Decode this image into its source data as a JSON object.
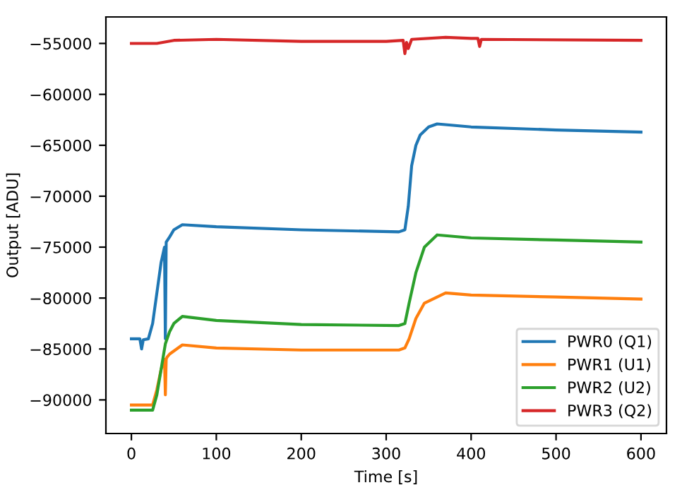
{
  "chart_data": {
    "type": "line",
    "xlabel": "Time [s]",
    "ylabel": "Output [ADU]",
    "xlim": [
      -30,
      630
    ],
    "ylim": [
      -93300,
      -52400
    ],
    "xticks": [
      0,
      100,
      200,
      300,
      400,
      500,
      600
    ],
    "yticks": [
      -90000,
      -85000,
      -80000,
      -75000,
      -70000,
      -65000,
      -60000,
      -55000
    ],
    "legend": "bottom right",
    "grid": false,
    "series": [
      {
        "name": "PWR0 (Q1)",
        "color": "#1f77b4",
        "x": [
          0,
          10,
          12,
          14,
          20,
          25,
          30,
          35,
          39,
          40,
          41,
          45,
          50,
          60,
          100,
          200,
          315,
          322,
          326,
          330,
          335,
          340,
          350,
          360,
          400,
          500,
          600
        ],
        "values": [
          -84000,
          -84000,
          -85000,
          -84100,
          -84000,
          -82500,
          -79500,
          -76500,
          -75000,
          -84000,
          -74500,
          -74000,
          -73300,
          -72800,
          -73000,
          -73300,
          -73500,
          -73300,
          -71000,
          -67000,
          -65000,
          -64000,
          -63200,
          -62900,
          -63200,
          -63500,
          -63700
        ]
      },
      {
        "name": "PWR1 (U1)",
        "color": "#ff7f0e",
        "x": [
          0,
          25,
          30,
          35,
          39,
          40,
          41,
          42,
          45,
          60,
          100,
          200,
          315,
          322,
          327,
          335,
          345,
          370,
          400,
          500,
          600
        ],
        "values": [
          -90500,
          -90500,
          -89000,
          -87000,
          -86000,
          -89500,
          -86000,
          -85800,
          -85500,
          -84600,
          -84900,
          -85100,
          -85100,
          -84900,
          -84000,
          -82000,
          -80500,
          -79500,
          -79700,
          -79900,
          -80100
        ]
      },
      {
        "name": "PWR2 (U2)",
        "color": "#2ca02c",
        "x": [
          0,
          25,
          30,
          35,
          40,
          45,
          50,
          60,
          100,
          200,
          315,
          322,
          327,
          335,
          345,
          360,
          400,
          500,
          600
        ],
        "values": [
          -91000,
          -91000,
          -89500,
          -87000,
          -84500,
          -83300,
          -82500,
          -81800,
          -82200,
          -82600,
          -82700,
          -82500,
          -80500,
          -77500,
          -75000,
          -73800,
          -74100,
          -74300,
          -74500
        ]
      },
      {
        "name": "PWR3 (Q2)",
        "color": "#d62728",
        "x": [
          0,
          30,
          50,
          100,
          200,
          300,
          320,
          322,
          324,
          326,
          330,
          370,
          400,
          408,
          410,
          412,
          600
        ],
        "values": [
          -55000,
          -55000,
          -54700,
          -54600,
          -54800,
          -54800,
          -54700,
          -56000,
          -54900,
          -55500,
          -54600,
          -54400,
          -54500,
          -54500,
          -55300,
          -54600,
          -54700
        ]
      }
    ]
  }
}
